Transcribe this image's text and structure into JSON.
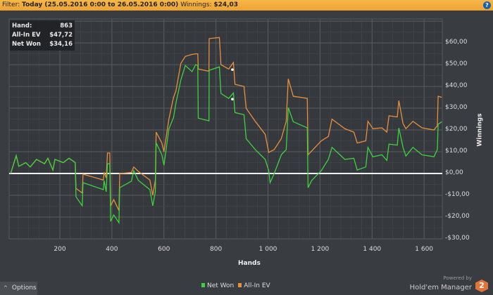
{
  "filter": {
    "label": "Filter:",
    "value": "Today (25.05.2016 0:00 to 26.05.2016 0:00)",
    "winnings_label": "Winnings:",
    "winnings_value": "$24,03"
  },
  "info_box": {
    "rows": [
      {
        "label": "Hand:",
        "value": "863"
      },
      {
        "label": "All-In EV",
        "value": "$47,72"
      },
      {
        "label": "Net Won",
        "value": "$34,16"
      }
    ]
  },
  "options_label": "Options",
  "powered_by": "Powered by",
  "brand": "Hold'em Manager",
  "brand_badge": "2",
  "colors": {
    "net_won": "#3fd13f",
    "all_in_ev": "#e8903a",
    "zero_line": "#f0f0f0",
    "filter_bar": "#f2ac3d"
  },
  "chart_data": {
    "type": "line",
    "xlabel": "Hands",
    "ylabel": "Winnings",
    "xlim": [
      5,
      1670
    ],
    "ylim": [
      -30,
      71
    ],
    "x_ticks": [
      200,
      400,
      600,
      800,
      1000,
      1200,
      1400,
      1600
    ],
    "x_tick_labels": [
      "200",
      "400",
      "600",
      "800",
      "1 000",
      "1 200",
      "1 400",
      "1 600"
    ],
    "y_ticks": [
      60,
      50,
      40,
      30,
      20,
      10,
      0,
      -10,
      -20,
      -30
    ],
    "y_tick_labels": [
      "$60,00",
      "$50,00",
      "$40,00",
      "$30,00",
      "$20,00",
      "$10,00",
      "$0,00",
      "-$10,00",
      "-$20,00",
      "-$30,00"
    ],
    "grid": true,
    "legend": "bottom-center",
    "highlighted_hand": 863,
    "series": [
      {
        "name": "Net Won",
        "color": "#3fd13f",
        "points": [
          [
            11,
            0
          ],
          [
            32,
            8.2
          ],
          [
            42,
            3.3
          ],
          [
            69,
            5
          ],
          [
            86,
            3
          ],
          [
            110,
            6.5
          ],
          [
            141,
            4.5
          ],
          [
            154,
            7
          ],
          [
            173,
            1.6
          ],
          [
            181,
            6.5
          ],
          [
            213,
            5
          ],
          [
            235,
            7
          ],
          [
            259,
            5
          ],
          [
            262,
            -10.7
          ],
          [
            286,
            -14.8
          ],
          [
            289,
            -4.2
          ],
          [
            367,
            -7.4
          ],
          [
            370,
            -3.3
          ],
          [
            378,
            -8.4
          ],
          [
            383,
            4.5
          ],
          [
            392,
            4.5
          ],
          [
            395,
            -22
          ],
          [
            407,
            -19
          ],
          [
            427,
            -22.6
          ],
          [
            430,
            -6.5
          ],
          [
            475,
            -3.5
          ],
          [
            484,
            1.3
          ],
          [
            501,
            -3.1
          ],
          [
            546,
            -7.4
          ],
          [
            557,
            -14.8
          ],
          [
            567,
            -8.4
          ],
          [
            570,
            14.1
          ],
          [
            592,
            8.6
          ],
          [
            600,
            3.8
          ],
          [
            619,
            20.5
          ],
          [
            637,
            25.8
          ],
          [
            646,
            32.3
          ],
          [
            665,
            43
          ],
          [
            682,
            49.6
          ],
          [
            708,
            46.8
          ],
          [
            722,
            50
          ],
          [
            730,
            49.6
          ],
          [
            732,
            25.4
          ],
          [
            773,
            24.2
          ],
          [
            774,
            47.4
          ],
          [
            813,
            49
          ],
          [
            819,
            36.8
          ],
          [
            849,
            34.5
          ],
          [
            867,
            37
          ],
          [
            873,
            28
          ],
          [
            908,
            27
          ],
          [
            916,
            16
          ],
          [
            951,
            11
          ],
          [
            989,
            6.5
          ],
          [
            1003,
            1.3
          ],
          [
            1008,
            -4.2
          ],
          [
            1024,
            0
          ],
          [
            1051,
            8.6
          ],
          [
            1070,
            11
          ],
          [
            1078,
            30.3
          ],
          [
            1097,
            23.8
          ],
          [
            1151,
            21
          ],
          [
            1154,
            -6.5
          ],
          [
            1168,
            -3.2
          ],
          [
            1205,
            1.3
          ],
          [
            1232,
            6.5
          ],
          [
            1246,
            12
          ],
          [
            1295,
            6.5
          ],
          [
            1330,
            7
          ],
          [
            1343,
            1.6
          ],
          [
            1376,
            3
          ],
          [
            1384,
            12
          ],
          [
            1403,
            7.7
          ],
          [
            1438,
            8.6
          ],
          [
            1457,
            6
          ],
          [
            1465,
            13.5
          ],
          [
            1497,
            13
          ],
          [
            1503,
            21
          ],
          [
            1519,
            12
          ],
          [
            1530,
            8
          ],
          [
            1557,
            12
          ],
          [
            1592,
            8.6
          ],
          [
            1638,
            7.7
          ],
          [
            1651,
            11
          ],
          [
            1654,
            22.6
          ],
          [
            1668,
            23.8
          ]
        ]
      },
      {
        "name": "All-In EV",
        "color": "#e8903a",
        "points": [
          [
            11,
            0
          ],
          [
            32,
            8.2
          ],
          [
            42,
            3.3
          ],
          [
            69,
            5
          ],
          [
            86,
            3
          ],
          [
            110,
            6.5
          ],
          [
            141,
            4.5
          ],
          [
            154,
            7
          ],
          [
            173,
            1.6
          ],
          [
            181,
            6.5
          ],
          [
            213,
            5
          ],
          [
            235,
            7
          ],
          [
            259,
            5
          ],
          [
            262,
            -6.8
          ],
          [
            286,
            -9
          ],
          [
            289,
            -0.3
          ],
          [
            367,
            -3
          ],
          [
            370,
            0.5
          ],
          [
            378,
            -2
          ],
          [
            383,
            9.4
          ],
          [
            392,
            9.4
          ],
          [
            395,
            -14.8
          ],
          [
            407,
            -12
          ],
          [
            427,
            -17
          ],
          [
            430,
            0
          ],
          [
            475,
            0.5
          ],
          [
            484,
            3
          ],
          [
            501,
            1
          ],
          [
            546,
            -3
          ],
          [
            557,
            -10
          ],
          [
            567,
            -3
          ],
          [
            570,
            19
          ],
          [
            592,
            14
          ],
          [
            600,
            10
          ],
          [
            619,
            25
          ],
          [
            637,
            35
          ],
          [
            646,
            38
          ],
          [
            665,
            50.6
          ],
          [
            682,
            53.8
          ],
          [
            708,
            54.7
          ],
          [
            722,
            55
          ],
          [
            730,
            55
          ],
          [
            732,
            48
          ],
          [
            773,
            47
          ],
          [
            774,
            62
          ],
          [
            813,
            62.5
          ],
          [
            819,
            50
          ],
          [
            849,
            48
          ],
          [
            867,
            51
          ],
          [
            873,
            41
          ],
          [
            908,
            40
          ],
          [
            916,
            30
          ],
          [
            951,
            24
          ],
          [
            989,
            18
          ],
          [
            1003,
            9.7
          ],
          [
            1024,
            11
          ],
          [
            1051,
            16
          ],
          [
            1070,
            24
          ],
          [
            1078,
            43.5
          ],
          [
            1097,
            35.5
          ],
          [
            1151,
            34.5
          ],
          [
            1154,
            8.6
          ],
          [
            1205,
            15
          ],
          [
            1232,
            17
          ],
          [
            1246,
            25
          ],
          [
            1295,
            20.6
          ],
          [
            1330,
            19
          ],
          [
            1343,
            14
          ],
          [
            1376,
            15
          ],
          [
            1384,
            24
          ],
          [
            1403,
            20.6
          ],
          [
            1438,
            21
          ],
          [
            1457,
            19
          ],
          [
            1465,
            26.5
          ],
          [
            1497,
            26
          ],
          [
            1503,
            33.5
          ],
          [
            1519,
            23
          ],
          [
            1530,
            20.6
          ],
          [
            1557,
            24
          ],
          [
            1592,
            21
          ],
          [
            1638,
            20
          ],
          [
            1651,
            22
          ],
          [
            1654,
            35.5
          ],
          [
            1668,
            35
          ]
        ]
      }
    ]
  }
}
